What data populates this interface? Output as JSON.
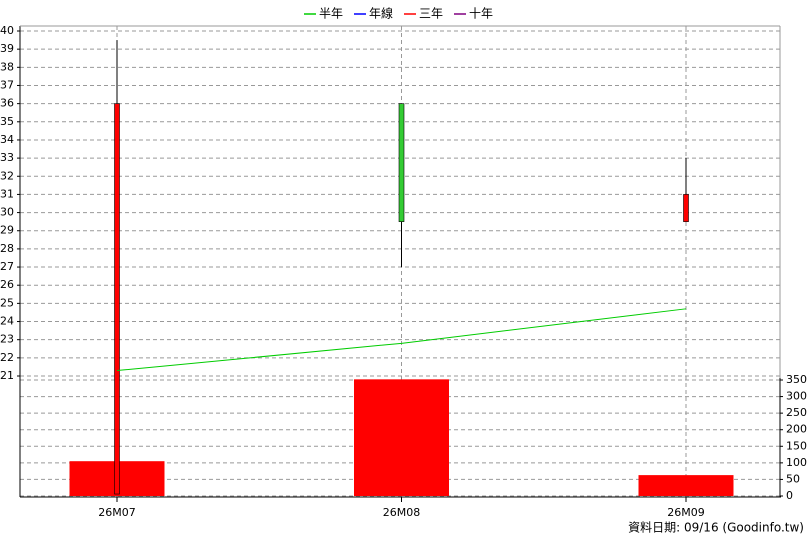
{
  "chart_data": {
    "type": "candlestick",
    "categories": [
      "26M07",
      "26M08",
      "26M09"
    ],
    "open": [
      14.5,
      36,
      29.5
    ],
    "high": [
      39.5,
      36,
      33
    ],
    "low": [
      14.5,
      27,
      29.5
    ],
    "close": [
      36,
      29.5,
      31
    ],
    "up_color": "#ff0000",
    "down_color": "#33cc33",
    "series": [
      {
        "name": "半年",
        "color": "#00cc00",
        "values": [
          21.3,
          22.8,
          24.7
        ]
      },
      {
        "name": "年線",
        "color": "#0000ff",
        "values": [
          null,
          null,
          null
        ]
      },
      {
        "name": "三年",
        "color": "#ff0000",
        "values": [
          null,
          null,
          null
        ]
      },
      {
        "name": "十年",
        "color": "#800080",
        "values": [
          null,
          null,
          null
        ]
      }
    ],
    "volume": {
      "color": "#ff0000",
      "values": [
        105,
        352,
        63
      ]
    },
    "ylim": [
      21,
      40
    ],
    "yticks": [
      21,
      22,
      23,
      24,
      25,
      26,
      27,
      28,
      29,
      30,
      31,
      32,
      33,
      34,
      35,
      36,
      37,
      38,
      39,
      40
    ],
    "y2lim": [
      0,
      350
    ],
    "y2ticks": [
      0,
      50,
      100,
      150,
      200,
      250,
      300,
      350
    ],
    "grid": true,
    "footnote": "資料日期: 09/16  (Goodinfo.tw)"
  }
}
